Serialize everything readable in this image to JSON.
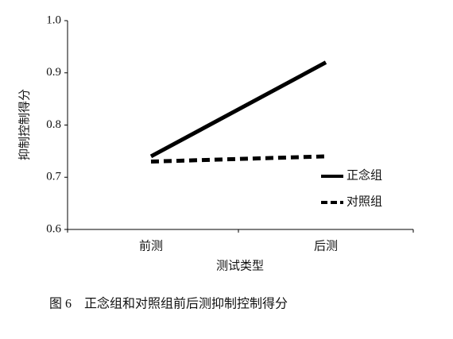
{
  "chart_data": {
    "type": "line",
    "x_label": "测试类型",
    "y_label": "抑制控制得分",
    "caption": "图 6　正念组和对照组前后测抑制控制得分",
    "categories": [
      "前测",
      "后测"
    ],
    "series": [
      {
        "name": "正念组",
        "color": "#000000",
        "dash": "solid",
        "values": [
          0.74,
          0.92
        ]
      },
      {
        "name": "对照组",
        "color": "#000000",
        "dash": "dashed",
        "values": [
          0.73,
          0.74
        ]
      }
    ],
    "ylim": [
      0.6,
      1.0
    ],
    "yticks": [
      0.6,
      0.7,
      0.8,
      0.9,
      {
        "value": 1.0,
        "label": "1.0"
      }
    ],
    "legend": "right"
  }
}
